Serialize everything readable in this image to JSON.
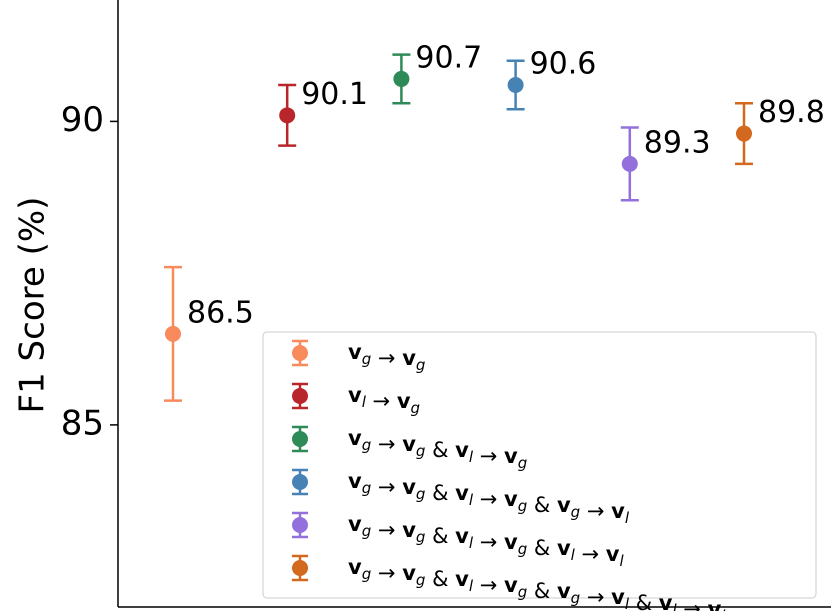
{
  "chart_data": {
    "type": "errorbar",
    "y_label": "F1 Score (%)",
    "ylim": [
      82,
      92
    ],
    "yticks": [
      85,
      90
    ],
    "series": [
      {
        "name": "vg → vg",
        "color": "#f88a5c",
        "values": [
          86.5
        ],
        "errors": [
          1.1
        ]
      },
      {
        "name": "vl → vg",
        "color": "#b8262b",
        "values": [
          90.1
        ],
        "errors": [
          0.5
        ]
      },
      {
        "name": "vg → vg & vl → vg",
        "color": "#2e8b57",
        "values": [
          90.7
        ],
        "errors": [
          0.4
        ]
      },
      {
        "name": "vg → vg & vl → vg & vg → vl",
        "color": "#4682b4",
        "values": [
          90.6
        ],
        "errors": [
          0.4
        ]
      },
      {
        "name": "vg → vg & vl → vg & vl → vl",
        "color": "#9370db",
        "values": [
          89.3
        ],
        "errors": [
          0.6
        ]
      },
      {
        "name": "vg → vg & vl → vg & vg → vl & vl → vl",
        "color": "#d2691e",
        "values": [
          89.8
        ],
        "errors": [
          0.5
        ]
      }
    ],
    "legend": "lower right"
  }
}
